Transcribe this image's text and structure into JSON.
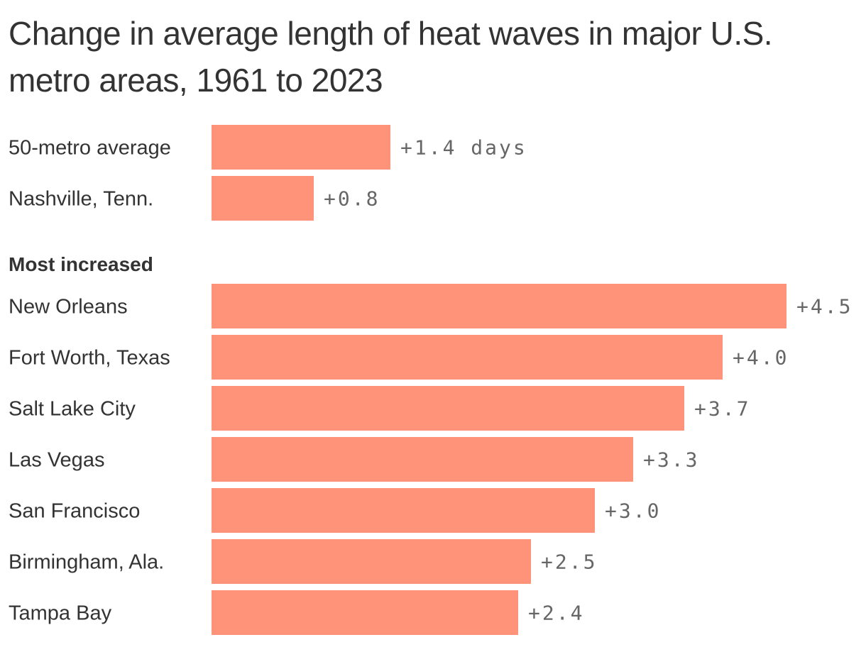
{
  "chart_data": {
    "type": "bar",
    "orientation": "horizontal",
    "title": "Change in average length of heat waves in major U.S. metro areas, 1961 to 2023",
    "unit": "days",
    "bar_color": "#ff937a",
    "text_color": "#333333",
    "value_label_color": "#666666",
    "xlim": [
      0,
      4.5
    ],
    "grid": false,
    "groups": [
      {
        "heading": "",
        "rows": [
          {
            "category": "50-metro average",
            "value": 1.4,
            "label": "+1.4 days"
          },
          {
            "category": "Nashville, Tenn.",
            "value": 0.8,
            "label": "+0.8"
          }
        ]
      },
      {
        "heading": "Most increased",
        "rows": [
          {
            "category": "New Orleans",
            "value": 4.5,
            "label": "+4.5"
          },
          {
            "category": "Fort Worth, Texas",
            "value": 4.0,
            "label": "+4.0"
          },
          {
            "category": "Salt Lake City",
            "value": 3.7,
            "label": "+3.7"
          },
          {
            "category": "Las Vegas",
            "value": 3.3,
            "label": "+3.3"
          },
          {
            "category": "San Francisco",
            "value": 3.0,
            "label": "+3.0"
          },
          {
            "category": "Birmingham, Ala.",
            "value": 2.5,
            "label": "+2.5"
          },
          {
            "category": "Tampa Bay",
            "value": 2.4,
            "label": "+2.4"
          }
        ]
      }
    ]
  }
}
